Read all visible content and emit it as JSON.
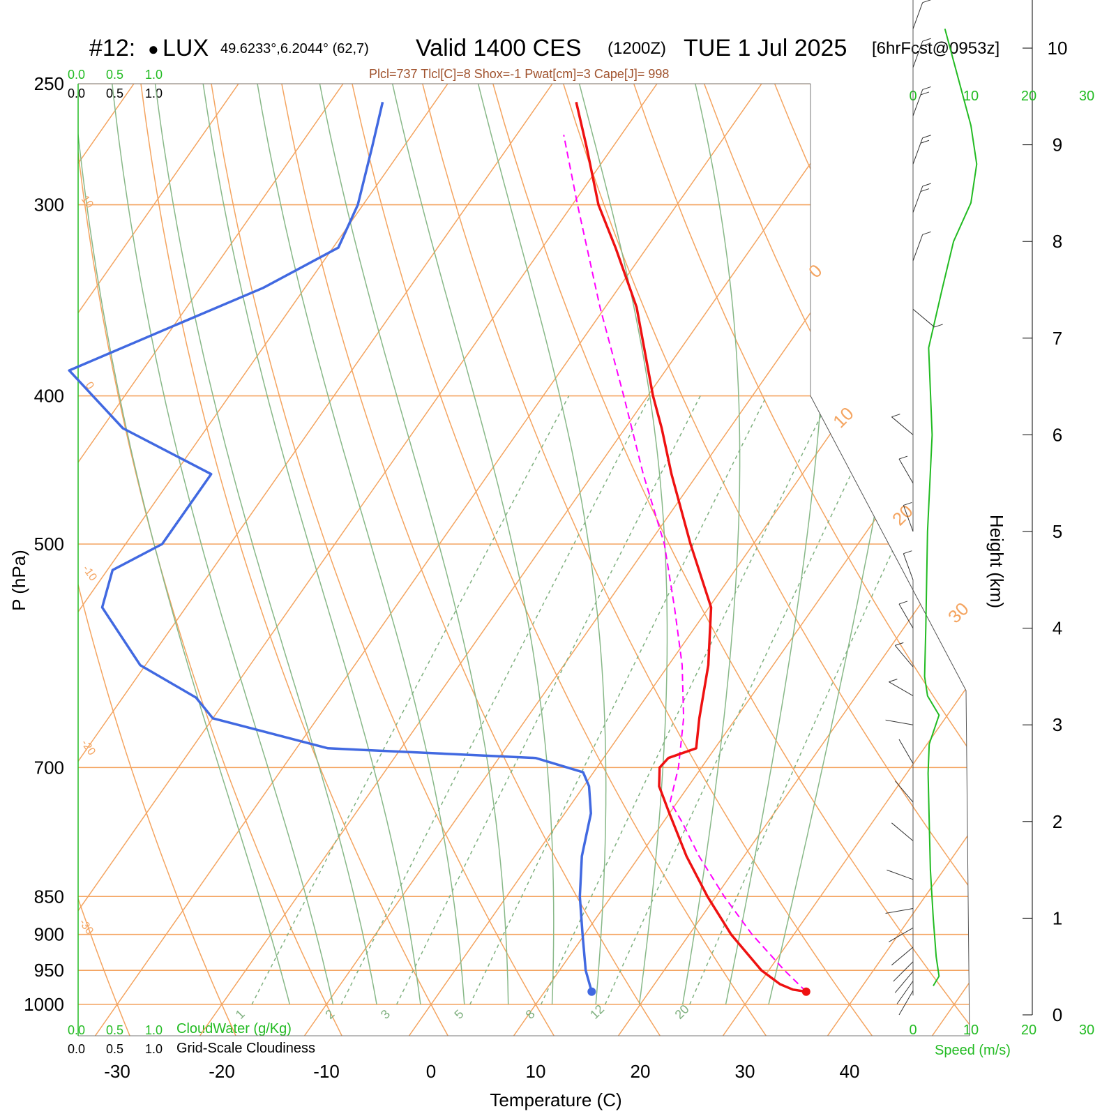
{
  "header": {
    "station_id": "#12:",
    "station_marker": "●",
    "station_name": "LUX",
    "coords": "49.6233°,6.2044° (62,7)",
    "valid_label": "Valid 1400 CES",
    "zulu": "(1200Z)",
    "date": "TUE 1 Jul 2025",
    "forecast": "[6hrFcst@0953z]",
    "indices": "Plcl=737 Tlcl[C]=8 Shox=-1 Pwat[cm]=3 Cape[J]= 998"
  },
  "scales": {
    "cloudwater_ticks": [
      "0.0",
      "0.5",
      "1.0"
    ],
    "cloudiness_ticks": [
      "0.0",
      "0.5",
      "1.0"
    ],
    "cloudwater_label": "CloudWater (g/Kg)",
    "cloudiness_label": "Grid-Scale Cloudiness",
    "speed_ticks": [
      "0",
      "10",
      "20",
      "30"
    ],
    "speed_label": "Speed (m/s)"
  },
  "colors": {
    "temperature": "#ee1111",
    "dewpoint": "#4169e1",
    "parcel": "#ff00ff",
    "isotherm": "#f4a460",
    "dry_adiabat": "#f4a460",
    "moist_adiabat": "#88b888",
    "mixing_ratio": "#7fb07f",
    "speed": "#22bb22"
  },
  "chart_data": {
    "type": "line",
    "subtype": "skew-T log-p sounding",
    "xlabel": "Temperature (C)",
    "ylabel": "P (hPa)",
    "y2label": "Height (km)",
    "x_ticks": [
      -30,
      -20,
      -10,
      0,
      10,
      20,
      30,
      40
    ],
    "p_ticks": [
      250,
      300,
      400,
      500,
      700,
      850,
      900,
      950,
      1000
    ],
    "height_ticks_km": [
      0,
      1,
      2,
      3,
      4,
      5,
      6,
      7,
      8,
      9,
      10
    ],
    "isotherm_labels": [
      {
        "t": 0,
        "text": "0"
      },
      {
        "t": 10,
        "text": "10"
      },
      {
        "t": 20,
        "text": "20"
      },
      {
        "t": 30,
        "text": "30"
      }
    ],
    "left_isotherm_labels": [
      {
        "t": 10,
        "text": "10"
      },
      {
        "t": 0,
        "text": "0"
      },
      {
        "t": -10,
        "text": "-10"
      },
      {
        "t": -20,
        "text": "-20"
      },
      {
        "t": -30,
        "text": "-30"
      }
    ],
    "mixing_ratio_lines": [
      1,
      2,
      3,
      5,
      8,
      12,
      20
    ],
    "series": [
      {
        "name": "temperature",
        "points": [
          {
            "p": 981,
            "t": 35.0
          },
          {
            "p": 978,
            "t": 33.6
          },
          {
            "p": 970,
            "t": 32.0
          },
          {
            "p": 950,
            "t": 29.3
          },
          {
            "p": 900,
            "t": 24.0
          },
          {
            "p": 850,
            "t": 19.2
          },
          {
            "p": 800,
            "t": 14.5
          },
          {
            "p": 750,
            "t": 10.0
          },
          {
            "p": 720,
            "t": 7.2
          },
          {
            "p": 700,
            "t": 6.0
          },
          {
            "p": 690,
            "t": 6.2
          },
          {
            "p": 680,
            "t": 8.2
          },
          {
            "p": 650,
            "t": 6.5
          },
          {
            "p": 600,
            "t": 3.8
          },
          {
            "p": 550,
            "t": 0.2
          },
          {
            "p": 500,
            "t": -6.0
          },
          {
            "p": 450,
            "t": -12.5
          },
          {
            "p": 420,
            "t": -16.5
          },
          {
            "p": 400,
            "t": -19.5
          },
          {
            "p": 350,
            "t": -27.0
          },
          {
            "p": 320,
            "t": -33.0
          },
          {
            "p": 300,
            "t": -37.5
          },
          {
            "p": 275,
            "t": -42.5
          },
          {
            "p": 257,
            "t": -46.5
          }
        ]
      },
      {
        "name": "dewpoint",
        "points": [
          {
            "p": 981,
            "t": 14.5
          },
          {
            "p": 950,
            "t": 12.5
          },
          {
            "p": 900,
            "t": 9.8
          },
          {
            "p": 850,
            "t": 7.0
          },
          {
            "p": 800,
            "t": 4.5
          },
          {
            "p": 750,
            "t": 2.5
          },
          {
            "p": 720,
            "t": 0.5
          },
          {
            "p": 705,
            "t": -1.0
          },
          {
            "p": 690,
            "t": -6.5
          },
          {
            "p": 680,
            "t": -27.0
          },
          {
            "p": 650,
            "t": -40.0
          },
          {
            "p": 630,
            "t": -43.0
          },
          {
            "p": 600,
            "t": -50.5
          },
          {
            "p": 550,
            "t": -58.0
          },
          {
            "p": 520,
            "t": -59.5
          },
          {
            "p": 500,
            "t": -56.5
          },
          {
            "p": 450,
            "t": -56.5
          },
          {
            "p": 420,
            "t": -68.0
          },
          {
            "p": 385,
            "t": -77.0
          },
          {
            "p": 360,
            "t": -70.0
          },
          {
            "p": 340,
            "t": -64.0
          },
          {
            "p": 320,
            "t": -59.5
          },
          {
            "p": 300,
            "t": -60.5
          },
          {
            "p": 275,
            "t": -63.0
          },
          {
            "p": 257,
            "t": -65.0
          }
        ]
      },
      {
        "name": "parcel",
        "points": [
          {
            "p": 981,
            "t": 35.0
          },
          {
            "p": 950,
            "t": 31.5
          },
          {
            "p": 900,
            "t": 26.0
          },
          {
            "p": 850,
            "t": 20.8
          },
          {
            "p": 800,
            "t": 15.7
          },
          {
            "p": 760,
            "t": 11.8
          },
          {
            "p": 737,
            "t": 9.3
          },
          {
            "p": 700,
            "t": 7.8
          },
          {
            "p": 650,
            "t": 5.0
          },
          {
            "p": 600,
            "t": 1.3
          },
          {
            "p": 550,
            "t": -3.3
          },
          {
            "p": 500,
            "t": -8.5
          },
          {
            "p": 450,
            "t": -15.2
          },
          {
            "p": 400,
            "t": -22.3
          },
          {
            "p": 350,
            "t": -30.5
          },
          {
            "p": 300,
            "t": -39.5
          },
          {
            "p": 270,
            "t": -45.5
          }
        ]
      }
    ],
    "speed_profile": [
      {
        "z": 0.3,
        "s": 3.5
      },
      {
        "z": 0.4,
        "s": 4.5
      },
      {
        "z": 0.6,
        "s": 4.0
      },
      {
        "z": 1.0,
        "s": 3.5
      },
      {
        "z": 1.5,
        "s": 3.0
      },
      {
        "z": 2.0,
        "s": 2.8
      },
      {
        "z": 2.5,
        "s": 2.6
      },
      {
        "z": 2.8,
        "s": 2.8
      },
      {
        "z": 3.1,
        "s": 4.5
      },
      {
        "z": 3.3,
        "s": 2.5
      },
      {
        "z": 3.5,
        "s": 2.0
      },
      {
        "z": 4.0,
        "s": 2.2
      },
      {
        "z": 5.0,
        "s": 2.5
      },
      {
        "z": 6.0,
        "s": 3.3
      },
      {
        "z": 6.9,
        "s": 2.7
      },
      {
        "z": 7.5,
        "s": 5.0
      },
      {
        "z": 8.0,
        "s": 7.0
      },
      {
        "z": 8.4,
        "s": 10.0
      },
      {
        "z": 8.8,
        "s": 11.0
      },
      {
        "z": 9.2,
        "s": 10.0
      },
      {
        "z": 10.2,
        "s": 5.5
      }
    ],
    "wind_barbs": [
      {
        "z": 0.25,
        "dir": 30,
        "spd": 3
      },
      {
        "z": 0.35,
        "dir": 35,
        "spd": 3
      },
      {
        "z": 0.45,
        "dir": 40,
        "spd": 3
      },
      {
        "z": 0.55,
        "dir": 45,
        "spd": 3
      },
      {
        "z": 0.7,
        "dir": 50,
        "spd": 3
      },
      {
        "z": 0.9,
        "dir": 60,
        "spd": 2
      },
      {
        "z": 1.1,
        "dir": 80,
        "spd": 2
      },
      {
        "z": 1.4,
        "dir": 110,
        "spd": 2
      },
      {
        "z": 1.8,
        "dir": 130,
        "spd": 2
      },
      {
        "z": 2.2,
        "dir": 140,
        "spd": 3
      },
      {
        "z": 2.6,
        "dir": 150,
        "spd": 3
      },
      {
        "z": 3.0,
        "dir": 100,
        "spd": 4
      },
      {
        "z": 3.3,
        "dir": 120,
        "spd": 5
      },
      {
        "z": 3.6,
        "dir": 140,
        "spd": 5
      },
      {
        "z": 4.0,
        "dir": 150,
        "spd": 5
      },
      {
        "z": 4.5,
        "dir": 160,
        "spd": 5
      },
      {
        "z": 5.0,
        "dir": 160,
        "spd": 5
      },
      {
        "z": 5.5,
        "dir": 150,
        "spd": 5
      },
      {
        "z": 6.0,
        "dir": 130,
        "spd": 5
      },
      {
        "z": 7.3,
        "dir": 310,
        "spd": 5
      },
      {
        "z": 7.8,
        "dir": 200,
        "spd": 5
      },
      {
        "z": 8.3,
        "dir": 200,
        "spd": 10
      },
      {
        "z": 8.8,
        "dir": 200,
        "spd": 12
      },
      {
        "z": 9.3,
        "dir": 200,
        "spd": 10
      },
      {
        "z": 9.8,
        "dir": 200,
        "spd": 10
      },
      {
        "z": 10.2,
        "dir": 200,
        "spd": 8
      }
    ]
  }
}
